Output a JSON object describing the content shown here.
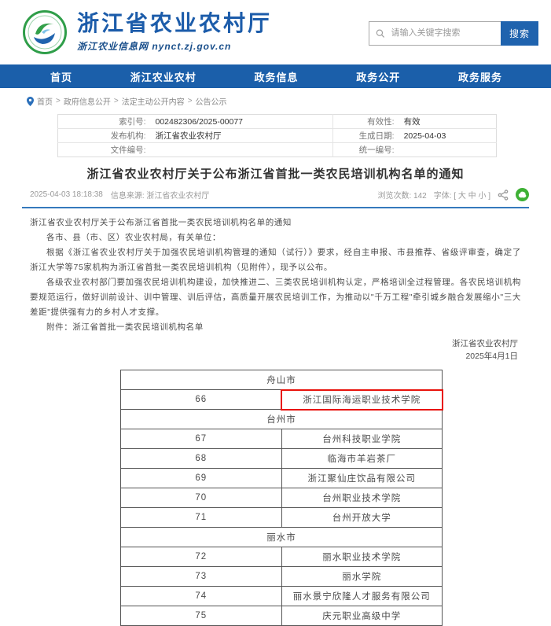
{
  "header": {
    "site_title": "浙江省农业农村厅",
    "site_subtitle": "浙江农业信息网 nynct.zj.gov.cn",
    "search_placeholder": "请输入关键字搜索",
    "search_button": "搜索"
  },
  "nav": {
    "items": [
      "首页",
      "浙江农业农村",
      "政务信息",
      "政务公开",
      "政务服务"
    ]
  },
  "breadcrumb": {
    "separator": ">",
    "items": [
      "首页",
      "政府信息公开",
      "法定主动公开内容",
      "公告公示"
    ]
  },
  "meta_table": {
    "rows": [
      {
        "label_left": "索引号:",
        "value_left": "002482306/2025-00077",
        "label_right": "有效性:",
        "value_right": "有效"
      },
      {
        "label_left": "发布机构:",
        "value_left": "浙江省农业农村厅",
        "label_right": "生成日期:",
        "value_right": "2025-04-03"
      },
      {
        "label_left": "文件编号:",
        "value_left": "",
        "label_right": "统一编号:",
        "value_right": ""
      }
    ]
  },
  "article": {
    "title": "浙江省农业农村厅关于公布浙江省首批一类农民培训机构名单的通知",
    "publish_time": "2025-04-03 18:18:38",
    "source_label": "信息来源: 浙江省农业农村厅",
    "views_label": "浏览次数: 142",
    "font_label": "字体: [",
    "font_sizes": [
      "大",
      "中",
      "小"
    ],
    "font_close": "]",
    "paragraphs": [
      {
        "text": "浙江省农业农村厅关于公布浙江省首批一类农民培训机构名单的通知"
      },
      {
        "text": "各市、县（市、区）农业农村局，有关单位："
      },
      {
        "text": "根据《浙江省农业农村厅关于加强农民培训机构管理的通知（试行）》要求，经自主申报、市县推荐、省级评审查，确定了浙江大学等75家机构为浙江省首批一类农民培训机构（见附件），现予以公布。"
      },
      {
        "text": "各级农业农村部门要加强农民培训机构建设，加快推进二、三类农民培训机构认定，严格培训全过程管理。各农民培训机构要规范运行，做好训前设计、训中管理、训后评估，高质量开展农民培训工作，为推动以\"千万工程\"牵引城乡融合发展缩小\"三大差距\"提供强有力的乡村人才支撑。"
      }
    ],
    "attachment": "附件：浙江省首批一类农民培训机构名单",
    "sign_org": "浙江省农业农村厅",
    "sign_date": "2025年4月1日"
  },
  "list_table": {
    "rows": [
      {
        "type": "section",
        "name": "舟山市"
      },
      {
        "type": "item",
        "no": "66",
        "name": "浙江国际海运职业技术学院",
        "highlight": true
      },
      {
        "type": "section",
        "name": "台州市"
      },
      {
        "type": "item",
        "no": "67",
        "name": "台州科技职业学院"
      },
      {
        "type": "item",
        "no": "68",
        "name": "临海市羊岩茶厂"
      },
      {
        "type": "item",
        "no": "69",
        "name": "浙江聚仙庄饮品有限公司"
      },
      {
        "type": "item",
        "no": "70",
        "name": "台州职业技术学院"
      },
      {
        "type": "item",
        "no": "71",
        "name": "台州开放大学"
      },
      {
        "type": "section",
        "name": "丽水市"
      },
      {
        "type": "item",
        "no": "72",
        "name": "丽水职业技术学院"
      },
      {
        "type": "item",
        "no": "73",
        "name": "丽水学院"
      },
      {
        "type": "item",
        "no": "74",
        "name": "丽水景宁欣隆人才服务有限公司"
      },
      {
        "type": "item",
        "no": "75",
        "name": "庆元职业高级中学"
      }
    ]
  },
  "colors": {
    "primary_blue": "#1b5faa",
    "title_blue": "#1c5caa",
    "highlight_red": "#e8130c",
    "icon_green": "#3eb135",
    "divider_blue": "#3579bd"
  }
}
